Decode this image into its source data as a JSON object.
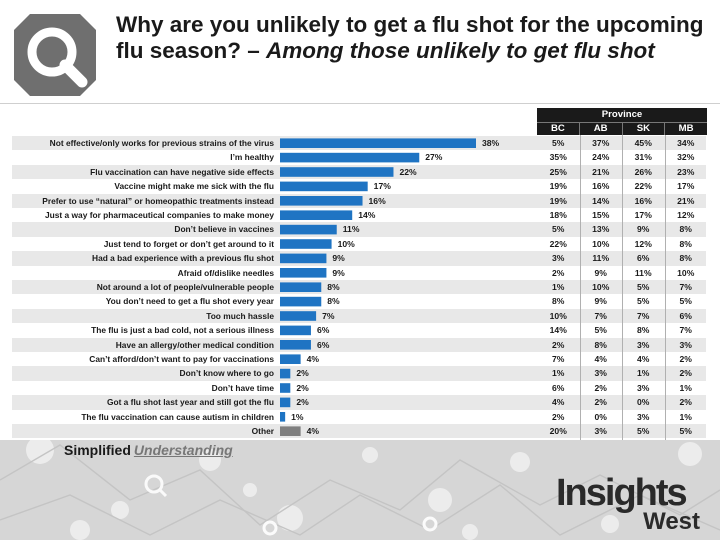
{
  "header": {
    "title_main": "Why are you unlikely to get a flu shot for the upcoming flu season? – ",
    "title_sub": "Among those unlikely to get flu shot"
  },
  "footer": {
    "simplified": "Simplified",
    "understanding": "Understanding",
    "brand_top": "Insights",
    "brand_bottom": "West"
  },
  "colors": {
    "bar": "#1f74c3",
    "bar_other": "#7f7f7f",
    "header_dark": "#1a1a1a",
    "row_alt": "#e8e8e8"
  },
  "chart_data": {
    "type": "bar",
    "orientation": "horizontal",
    "categories": [
      "Not effective/only works for previous strains of the virus",
      "I’m healthy",
      "Flu vaccination can have negative side effects",
      "Vaccine might make me sick with the flu",
      "Prefer to use “natural” or homeopathic treatments instead",
      "Just a way for pharmaceutical companies to make money",
      "Don’t believe in vaccines",
      "Just tend to forget or don’t get around to it",
      "Had a bad experience with a previous flu shot",
      "Afraid of/dislike needles",
      "Not around a lot of people/vulnerable people",
      "You don’t need to get a flu shot every year",
      "Too much hassle",
      "The flu is just a bad cold, not a serious illness",
      "Have an allergy/other medical condition",
      "Can’t afford/don’t want to pay for vaccinations",
      "Don’t know where to go",
      "Don’t have time",
      "Got a flu shot last year and still got the flu",
      "The flu vaccination can cause autism in children",
      "Other"
    ],
    "values": [
      38,
      27,
      22,
      17,
      16,
      14,
      11,
      10,
      9,
      9,
      8,
      8,
      7,
      6,
      6,
      4,
      2,
      2,
      2,
      1,
      4
    ],
    "value_labels": [
      "38%",
      "27%",
      "22%",
      "17%",
      "16%",
      "14%",
      "11%",
      "10%",
      "9%",
      "9%",
      "8%",
      "8%",
      "7%",
      "6%",
      "6%",
      "4%",
      "2%",
      "2%",
      "2%",
      "1%",
      "4%"
    ],
    "highlight_last_category": true,
    "xlim": [
      0,
      40
    ],
    "province_table": {
      "title": "Province",
      "columns": [
        "BC",
        "AB",
        "SK",
        "MB"
      ],
      "rows": [
        [
          "5%",
          "37%",
          "45%",
          "34%"
        ],
        [
          "35%",
          "24%",
          "31%",
          "32%"
        ],
        [
          "25%",
          "21%",
          "26%",
          "23%"
        ],
        [
          "19%",
          "16%",
          "22%",
          "17%"
        ],
        [
          "19%",
          "14%",
          "16%",
          "21%"
        ],
        [
          "18%",
          "15%",
          "17%",
          "12%"
        ],
        [
          "5%",
          "13%",
          "9%",
          "8%"
        ],
        [
          "22%",
          "10%",
          "12%",
          "8%"
        ],
        [
          "3%",
          "11%",
          "6%",
          "8%"
        ],
        [
          "2%",
          "9%",
          "11%",
          "10%"
        ],
        [
          "1%",
          "10%",
          "5%",
          "7%"
        ],
        [
          "8%",
          "9%",
          "5%",
          "5%"
        ],
        [
          "10%",
          "7%",
          "7%",
          "6%"
        ],
        [
          "14%",
          "5%",
          "8%",
          "7%"
        ],
        [
          "2%",
          "8%",
          "3%",
          "3%"
        ],
        [
          "7%",
          "4%",
          "4%",
          "2%"
        ],
        [
          "1%",
          "3%",
          "1%",
          "2%"
        ],
        [
          "6%",
          "2%",
          "3%",
          "1%"
        ],
        [
          "4%",
          "2%",
          "0%",
          "2%"
        ],
        [
          "2%",
          "0%",
          "3%",
          "1%"
        ],
        [
          "20%",
          "3%",
          "5%",
          "5%"
        ]
      ]
    }
  }
}
